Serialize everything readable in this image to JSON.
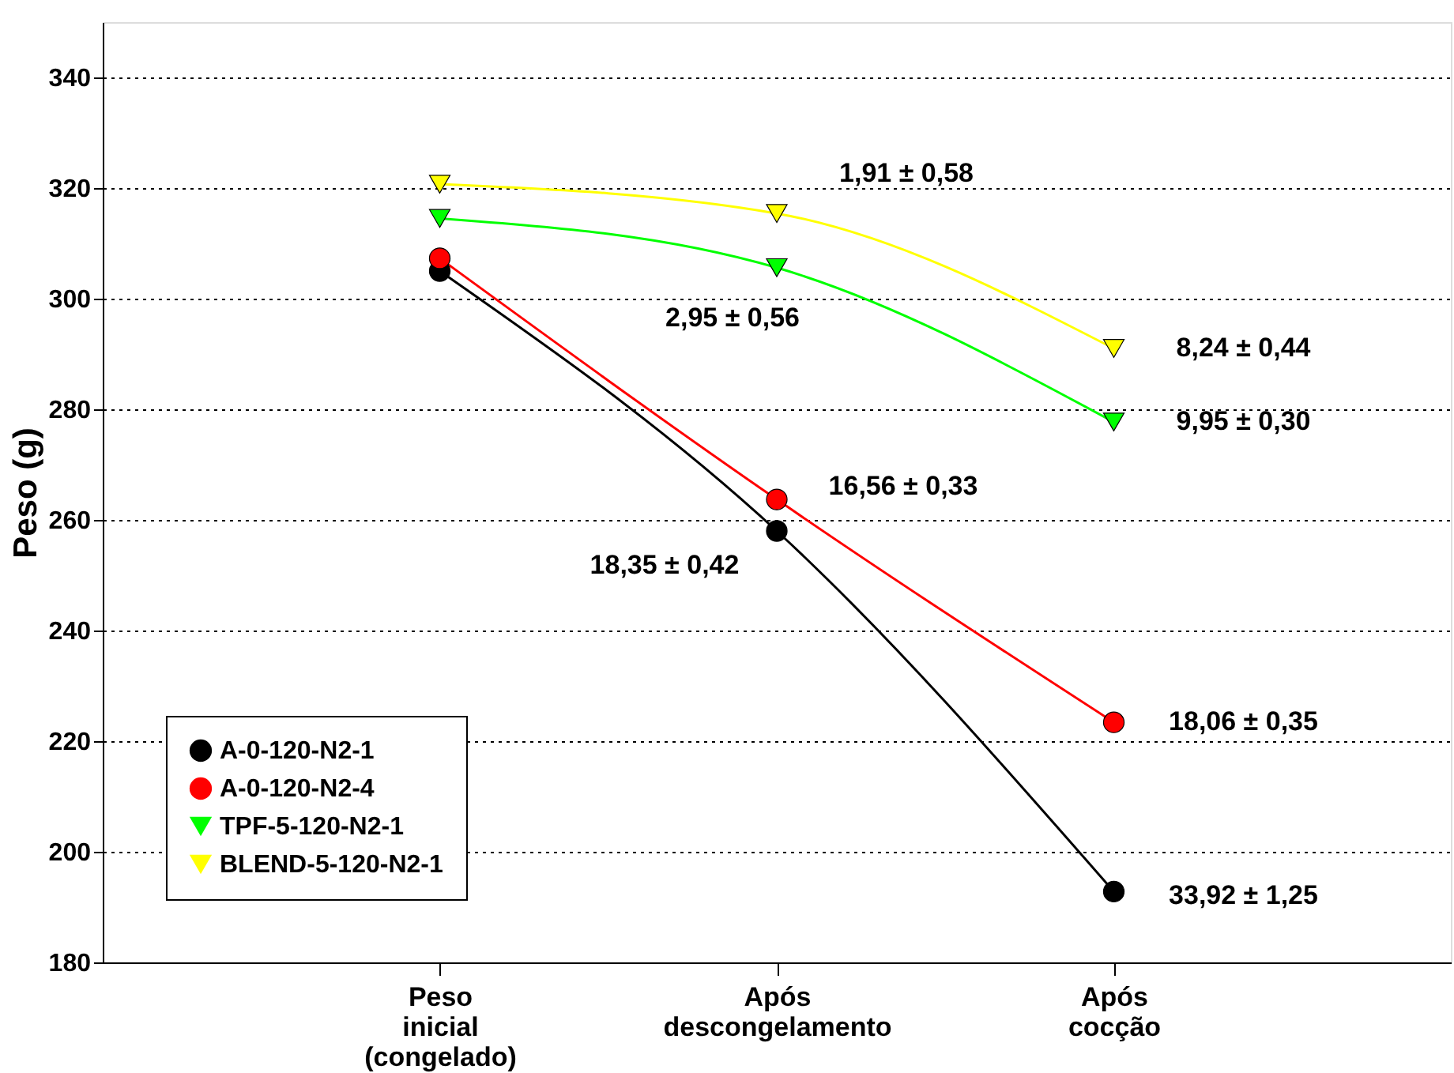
{
  "chart_data": {
    "type": "line",
    "ylabel": "Peso (g)",
    "categories": [
      "Peso inicial (congelado)",
      "Após descongelamento",
      "Após cocção"
    ],
    "series": [
      {
        "name": "A-0-120-N2-1",
        "color": "#000000",
        "marker": "circle",
        "values": [
          305,
          258,
          192.8
        ]
      },
      {
        "name": "A-0-120-N2-4",
        "color": "#ff0000",
        "marker": "circle",
        "values": [
          307.3,
          263.7,
          223.4
        ]
      },
      {
        "name": "TPF-5-120-N2-1",
        "color": "#00ff00",
        "marker": "triangle",
        "values": [
          314.5,
          305.6,
          277.7
        ]
      },
      {
        "name": "BLEND-5-120-N2-1",
        "color": "#ffff00",
        "marker": "triangle",
        "values": [
          320.7,
          315.4,
          291
        ]
      }
    ],
    "ylim": [
      180,
      350
    ],
    "yticks": [
      180,
      200,
      220,
      240,
      260,
      280,
      300,
      320,
      340
    ],
    "grid": "y",
    "legend": "bottom left",
    "annotations": [
      {
        "text": "1,91 ± 0,58",
        "x": "Após descongelamento",
        "y": 315.4
      },
      {
        "text": "2,95 ± 0,56",
        "x": "Após descongelamento",
        "y": 305.6
      },
      {
        "text": "8,24 ± 0,44",
        "x": "Após cocção",
        "y": 291
      },
      {
        "text": "9,95 ± 0,30",
        "x": "Após cocção",
        "y": 277.7
      },
      {
        "text": "16,56 ± 0,33",
        "x": "Após descongelamento",
        "y": 263.7
      },
      {
        "text": "18,35 ± 0,42",
        "x": "Após descongelamento",
        "y": 258
      },
      {
        "text": "18,06 ± 0,35",
        "x": "Após cocção",
        "y": 223.4
      },
      {
        "text": "33,92 ± 1,25",
        "x": "Após cocção",
        "y": 192.8
      }
    ]
  }
}
